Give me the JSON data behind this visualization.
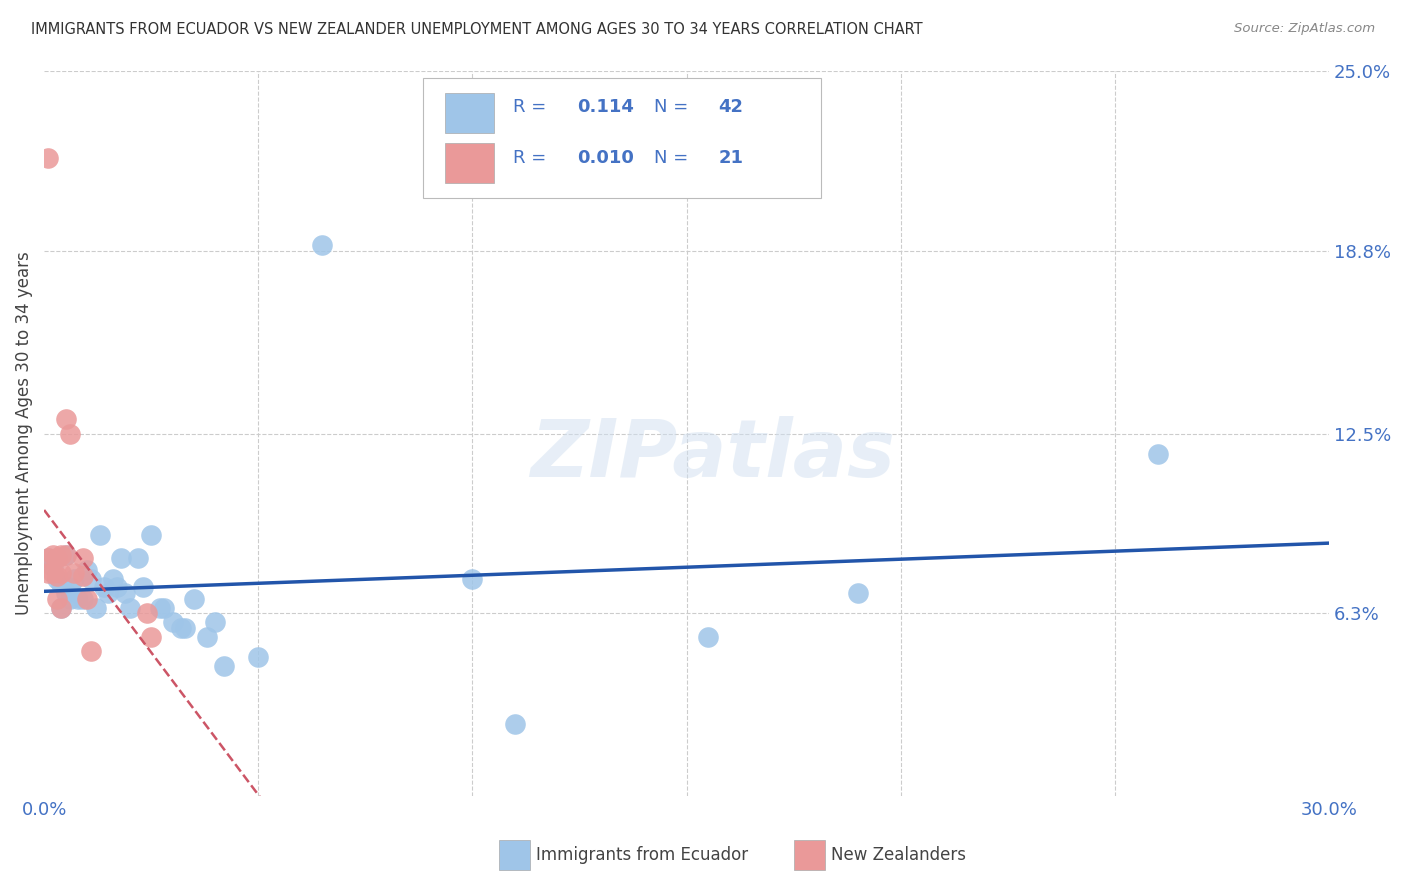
{
  "title": "IMMIGRANTS FROM ECUADOR VS NEW ZEALANDER UNEMPLOYMENT AMONG AGES 30 TO 34 YEARS CORRELATION CHART",
  "source": "Source: ZipAtlas.com",
  "ylabel": "Unemployment Among Ages 30 to 34 years",
  "xlim": [
    0.0,
    0.3
  ],
  "ylim": [
    0.0,
    0.25
  ],
  "ytick_right_labels": [
    "25.0%",
    "18.8%",
    "12.5%",
    "6.3%"
  ],
  "ytick_right_values": [
    0.25,
    0.188,
    0.125,
    0.063
  ],
  "watermark": "ZIPatlas",
  "blue_color": "#9fc5e8",
  "pink_color": "#ea9999",
  "line_blue": "#2255aa",
  "line_pink": "#cc5566",
  "text_blue": "#4472c4",
  "background_color": "#ffffff",
  "grid_color": "#cccccc",
  "title_color": "#333333",
  "axis_label_color": "#444444",
  "ecuador_x": [
    0.001,
    0.002,
    0.003,
    0.004,
    0.004,
    0.005,
    0.005,
    0.006,
    0.006,
    0.007,
    0.008,
    0.009,
    0.01,
    0.011,
    0.012,
    0.013,
    0.014,
    0.015,
    0.016,
    0.017,
    0.018,
    0.019,
    0.02,
    0.022,
    0.023,
    0.025,
    0.027,
    0.028,
    0.03,
    0.032,
    0.033,
    0.035,
    0.038,
    0.04,
    0.042,
    0.05,
    0.065,
    0.1,
    0.11,
    0.155,
    0.19,
    0.26
  ],
  "ecuador_y": [
    0.082,
    0.079,
    0.075,
    0.073,
    0.065,
    0.083,
    0.07,
    0.072,
    0.068,
    0.075,
    0.068,
    0.068,
    0.078,
    0.075,
    0.065,
    0.09,
    0.072,
    0.07,
    0.075,
    0.072,
    0.082,
    0.07,
    0.065,
    0.082,
    0.072,
    0.09,
    0.065,
    0.065,
    0.06,
    0.058,
    0.058,
    0.068,
    0.055,
    0.06,
    0.045,
    0.048,
    0.19,
    0.075,
    0.025,
    0.055,
    0.07,
    0.118
  ],
  "nz_x": [
    0.001,
    0.001,
    0.001,
    0.002,
    0.002,
    0.003,
    0.003,
    0.003,
    0.004,
    0.004,
    0.004,
    0.005,
    0.005,
    0.006,
    0.007,
    0.009,
    0.009,
    0.01,
    0.011,
    0.024,
    0.025
  ],
  "nz_y": [
    0.22,
    0.082,
    0.077,
    0.083,
    0.077,
    0.082,
    0.076,
    0.068,
    0.083,
    0.077,
    0.065,
    0.13,
    0.083,
    0.125,
    0.077,
    0.082,
    0.076,
    0.068,
    0.05,
    0.063,
    0.055
  ],
  "right_label_color": "#4472c4"
}
